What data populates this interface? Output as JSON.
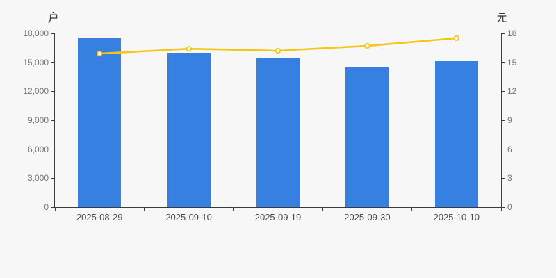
{
  "page": {
    "background_color": "#F7F7F7"
  },
  "chart_data": {
    "type": "combo",
    "title": "",
    "categories": [
      "2025-08-29",
      "2025-09-10",
      "2025-09-19",
      "2025-09-30",
      "2025-10-10"
    ],
    "series": [
      {
        "name": "户",
        "type": "bar",
        "axis": "left",
        "unit": "户",
        "values": [
          17500,
          16000,
          15400,
          14500,
          15100
        ],
        "color": "#3680E2"
      },
      {
        "name": "元",
        "type": "line",
        "axis": "right",
        "unit": "元",
        "values": [
          15.9,
          16.4,
          16.2,
          16.7,
          17.5
        ],
        "color": "#F9C513",
        "marker": {
          "shape": "empty-circle",
          "fill": "#FFFFFF"
        }
      }
    ],
    "left_axis": {
      "title": "户",
      "min": 0,
      "max": 18000,
      "interval": 3000,
      "tick_labels": [
        "0",
        "3,000",
        "6,000",
        "9,000",
        "12,000",
        "15,000",
        "18,000"
      ]
    },
    "right_axis": {
      "title": "元",
      "min": 0,
      "max": 18,
      "interval": 3,
      "tick_labels": [
        "0",
        "3",
        "6",
        "9",
        "12",
        "15",
        "18"
      ]
    },
    "x_axis": {
      "boundary_ticks": 6
    },
    "grid": false,
    "legend": "none",
    "colors": {
      "axis_line": "#3C3C3C",
      "y_tick_text": "#757575",
      "x_tick_text": "#4A4A4A"
    }
  }
}
